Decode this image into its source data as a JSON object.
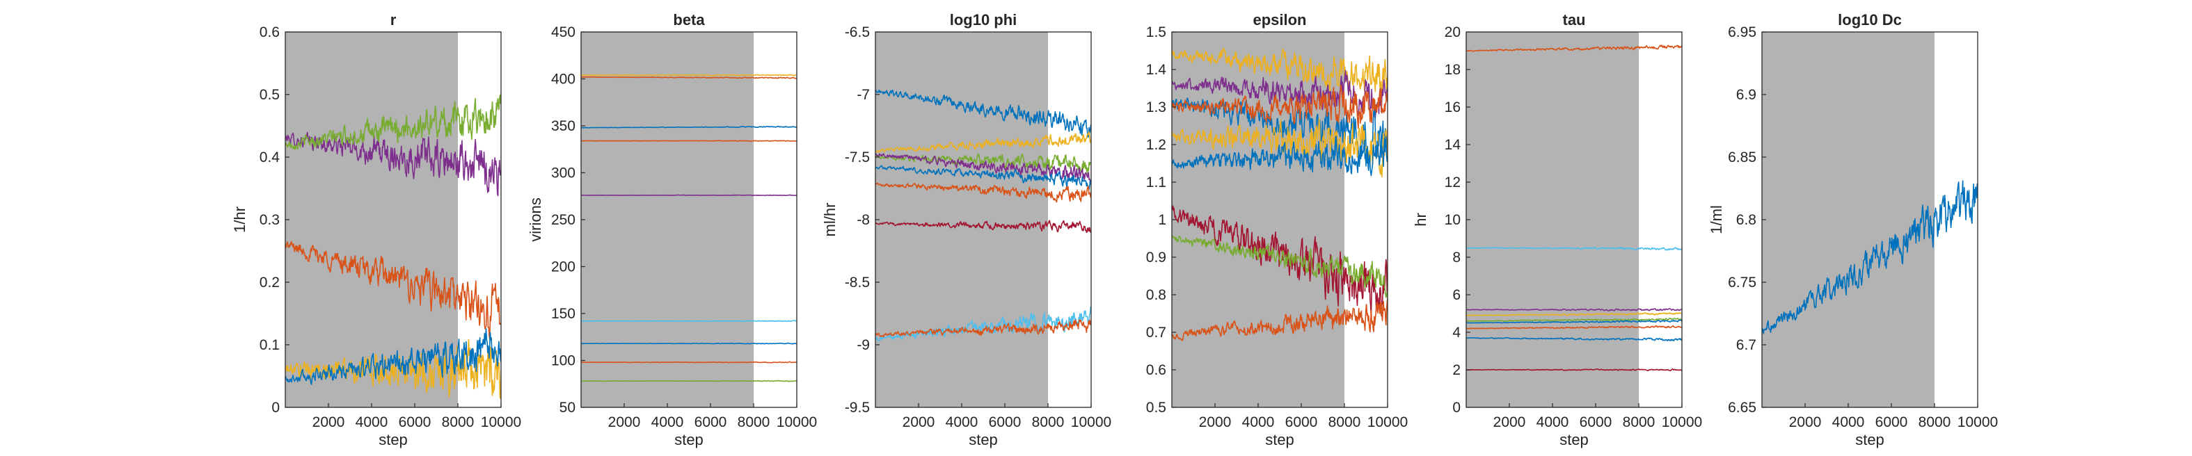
{
  "figure": {
    "panels_count": 6
  },
  "colors": {
    "shade": "#b3b3b3",
    "axis": "#262626",
    "palette": [
      "#0072bd",
      "#d95319",
      "#edb120",
      "#7e2f8e",
      "#77ac30",
      "#4dbeee",
      "#a2142f"
    ]
  },
  "chart_data": [
    {
      "type": "line",
      "title": "r",
      "xlabel": "step",
      "ylabel": "1/hr",
      "xlim": [
        0,
        10000
      ],
      "ylim": [
        0,
        0.6
      ],
      "xticks": [
        2000,
        4000,
        6000,
        8000,
        10000
      ],
      "yticks": [
        0,
        0.1,
        0.2,
        0.3,
        0.4,
        0.5,
        0.6
      ],
      "shaded_until": 8000,
      "grid": false,
      "series": [
        {
          "color": "#7e2f8e",
          "start": 0.43,
          "end": 0.38,
          "noise": 0.03
        },
        {
          "color": "#77ac30",
          "start": 0.42,
          "end": 0.47,
          "noise": 0.025
        },
        {
          "color": "#d95319",
          "start": 0.26,
          "end": 0.15,
          "noise": 0.03
        },
        {
          "color": "#edb120",
          "start": 0.06,
          "end": 0.06,
          "noise": 0.035
        },
        {
          "color": "#0072bd",
          "start": 0.045,
          "end": 0.09,
          "noise": 0.025
        }
      ]
    },
    {
      "type": "line",
      "title": "beta",
      "xlabel": "step",
      "ylabel": "virions",
      "xlim": [
        0,
        10000
      ],
      "ylim": [
        50,
        450
      ],
      "xticks": [
        2000,
        4000,
        6000,
        8000,
        10000
      ],
      "yticks": [
        50,
        100,
        150,
        200,
        250,
        300,
        350,
        400,
        450
      ],
      "shaded_until": 8000,
      "grid": false,
      "series": [
        {
          "color": "#edb120",
          "start": 404,
          "end": 404,
          "noise": 0.4
        },
        {
          "color": "#d95319",
          "start": 402,
          "end": 401,
          "noise": 0.4
        },
        {
          "color": "#0072bd",
          "start": 348,
          "end": 349,
          "noise": 0.4
        },
        {
          "color": "#d95319",
          "start": 334,
          "end": 334,
          "noise": 0.3
        },
        {
          "color": "#7e2f8e",
          "start": 276,
          "end": 276,
          "noise": 0.3
        },
        {
          "color": "#4dbeee",
          "start": 142,
          "end": 142,
          "noise": 0.3
        },
        {
          "color": "#0072bd",
          "start": 118,
          "end": 118,
          "noise": 0.3
        },
        {
          "color": "#d95319",
          "start": 98,
          "end": 98,
          "noise": 0.3
        },
        {
          "color": "#77ac30",
          "start": 78,
          "end": 78,
          "noise": 0.3
        }
      ]
    },
    {
      "type": "line",
      "title": "log10 phi",
      "xlabel": "step",
      "ylabel": "ml/hr",
      "xlim": [
        0,
        10000
      ],
      "ylim": [
        -9.5,
        -6.5
      ],
      "xticks": [
        2000,
        4000,
        6000,
        8000,
        10000
      ],
      "yticks": [
        -9.5,
        -9,
        -8.5,
        -8,
        -7.5,
        -7,
        -6.5
      ],
      "shaded_until": 8000,
      "grid": false,
      "series": [
        {
          "color": "#0072bd",
          "start": -6.97,
          "end": -7.25,
          "noise": 0.06
        },
        {
          "color": "#edb120",
          "start": -7.45,
          "end": -7.35,
          "noise": 0.04
        },
        {
          "color": "#77ac30",
          "start": -7.5,
          "end": -7.55,
          "noise": 0.05
        },
        {
          "color": "#7e2f8e",
          "start": -7.48,
          "end": -7.65,
          "noise": 0.05
        },
        {
          "color": "#0072bd",
          "start": -7.58,
          "end": -7.7,
          "noise": 0.04
        },
        {
          "color": "#d95319",
          "start": -7.72,
          "end": -7.8,
          "noise": 0.04
        },
        {
          "color": "#a2142f",
          "start": -8.03,
          "end": -8.06,
          "noise": 0.03
        },
        {
          "color": "#4dbeee",
          "start": -8.95,
          "end": -8.78,
          "noise": 0.06
        },
        {
          "color": "#d95319",
          "start": -8.92,
          "end": -8.85,
          "noise": 0.04
        }
      ]
    },
    {
      "type": "line",
      "title": "epsilon",
      "xlabel": "step",
      "ylabel": "",
      "xlim": [
        0,
        10000
      ],
      "ylim": [
        0.5,
        1.5
      ],
      "xticks": [
        2000,
        4000,
        6000,
        8000,
        10000
      ],
      "yticks": [
        0.5,
        0.6,
        0.7,
        0.8,
        0.9,
        1,
        1.1,
        1.2,
        1.3,
        1.4,
        1.5
      ],
      "shaded_until": 8000,
      "grid": false,
      "series": [
        {
          "color": "#edb120",
          "start": 1.44,
          "end": 1.38,
          "noise": 0.04
        },
        {
          "color": "#7e2f8e",
          "start": 1.36,
          "end": 1.33,
          "noise": 0.04
        },
        {
          "color": "#0072bd",
          "start": 1.31,
          "end": 1.22,
          "noise": 0.05
        },
        {
          "color": "#d95319",
          "start": 1.3,
          "end": 1.3,
          "noise": 0.04
        },
        {
          "color": "#edb120",
          "start": 1.22,
          "end": 1.2,
          "noise": 0.05
        },
        {
          "color": "#0072bd",
          "start": 1.15,
          "end": 1.18,
          "noise": 0.04
        },
        {
          "color": "#a2142f",
          "start": 1.02,
          "end": 0.8,
          "noise": 0.06
        },
        {
          "color": "#77ac30",
          "start": 0.95,
          "end": 0.85,
          "noise": 0.03
        },
        {
          "color": "#d95319",
          "start": 0.69,
          "end": 0.75,
          "noise": 0.03
        }
      ]
    },
    {
      "type": "line",
      "title": "tau",
      "xlabel": "step",
      "ylabel": "hr",
      "xlim": [
        0,
        10000
      ],
      "ylim": [
        0,
        20
      ],
      "xticks": [
        2000,
        4000,
        6000,
        8000,
        10000
      ],
      "yticks": [
        0,
        2,
        4,
        6,
        8,
        10,
        12,
        14,
        16,
        18,
        20
      ],
      "shaded_until": 8000,
      "grid": false,
      "series": [
        {
          "color": "#d95319",
          "start": 19.0,
          "end": 19.2,
          "noise": 0.08
        },
        {
          "color": "#4dbeee",
          "start": 8.5,
          "end": 8.45,
          "noise": 0.05
        },
        {
          "color": "#7e2f8e",
          "start": 5.2,
          "end": 5.2,
          "noise": 0.04
        },
        {
          "color": "#edb120",
          "start": 4.9,
          "end": 5.0,
          "noise": 0.04
        },
        {
          "color": "#77ac30",
          "start": 4.6,
          "end": 4.7,
          "noise": 0.04
        },
        {
          "color": "#0072bd",
          "start": 4.5,
          "end": 4.6,
          "noise": 0.04
        },
        {
          "color": "#d95319",
          "start": 4.2,
          "end": 4.3,
          "noise": 0.04
        },
        {
          "color": "#0072bd",
          "start": 3.7,
          "end": 3.6,
          "noise": 0.05
        },
        {
          "color": "#a2142f",
          "start": 2.0,
          "end": 2.0,
          "noise": 0.03
        }
      ]
    },
    {
      "type": "line",
      "title": "log10 Dc",
      "xlabel": "step",
      "ylabel": "1/ml",
      "xlim": [
        0,
        10000
      ],
      "ylim": [
        6.65,
        6.95
      ],
      "xticks": [
        2000,
        4000,
        6000,
        8000,
        10000
      ],
      "yticks": [
        6.65,
        6.7,
        6.75,
        6.8,
        6.85,
        6.9,
        6.95
      ],
      "shaded_until": 8000,
      "grid": false,
      "series": [
        {
          "color": "#0072bd",
          "start": 6.71,
          "end": 6.82,
          "noise": 0.015
        }
      ]
    }
  ]
}
